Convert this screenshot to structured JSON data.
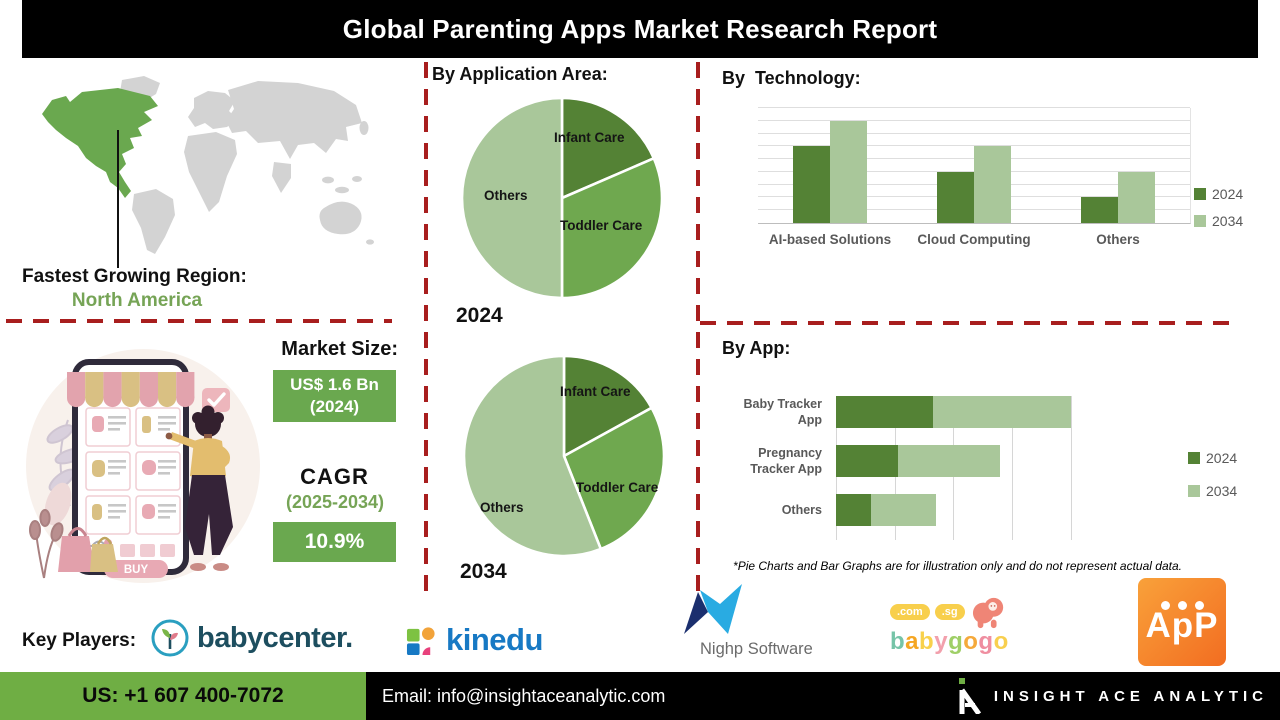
{
  "title": "Global Parenting Apps Market Research Report",
  "colors": {
    "green_dark": "#548235",
    "green_mid": "#6fa84f",
    "green_light": "#a9c79a",
    "accent_red": "#a81e1e",
    "box_green": "#6aa84f",
    "footer_green": "#6fae44",
    "text_green": "#76a456"
  },
  "map_section": {
    "caption": "Fastest Growing Region:",
    "region": "North America"
  },
  "market": {
    "size_label": "Market Size:",
    "size_value": "US$ 1.6 Bn",
    "size_year": "(2024)",
    "cagr_label": "CAGR",
    "cagr_period": "(2025-2034)",
    "cagr_value": "10.9%"
  },
  "sections": {
    "application_area_heading": "By Application Area:",
    "technology_heading": "By  Technology:",
    "app_heading": "By App:"
  },
  "chart_data": [
    {
      "type": "pie",
      "title": "2024",
      "slices": [
        {
          "label": "Infant Care",
          "pct": 18.5,
          "color": "#548235"
        },
        {
          "label": "Toddler Care",
          "pct": 31.5,
          "color": "#6fa84f"
        },
        {
          "label": "Others",
          "pct": 50,
          "color": "#a9c79a"
        }
      ]
    },
    {
      "type": "pie",
      "title": "2034",
      "slices": [
        {
          "label": "Infant Care",
          "pct": 17,
          "color": "#548235"
        },
        {
          "label": "Toddler Care",
          "pct": 27,
          "color": "#6fa84f"
        },
        {
          "label": "Others",
          "pct": 56,
          "color": "#a9c79a"
        }
      ]
    },
    {
      "type": "bar",
      "title": "By Technology",
      "categories": [
        "AI-based Solutions",
        "Cloud Computing",
        "Others"
      ],
      "series": [
        {
          "name": "2024",
          "color": "#548235",
          "values": [
            6,
            4,
            2
          ]
        },
        {
          "name": "2034",
          "color": "#a9c79a",
          "values": [
            8,
            6,
            4
          ]
        }
      ],
      "ylim": [
        0,
        9
      ],
      "grid_step": 1,
      "legend_position": "right"
    },
    {
      "type": "stacked-bar-horizontal",
      "title": "By App",
      "categories": [
        "Baby Tracker App",
        "Pregnancy Tracker App",
        "Others"
      ],
      "series": [
        {
          "name": "2024",
          "color": "#548235",
          "values": [
            1.65,
            1.05,
            0.6
          ]
        },
        {
          "name": "2034",
          "color": "#a9c79a",
          "values": [
            2.35,
            1.75,
            1.1
          ]
        }
      ],
      "xlim": [
        0,
        4.7
      ],
      "grid_step": 1,
      "legend_position": "right"
    }
  ],
  "footnote": "*Pie Charts and Bar Graphs are for illustration only and do not represent actual data.",
  "key_players": {
    "label": "Key Players:",
    "players": [
      "babycenter.",
      "kinedu",
      "Nighp Software",
      "babygogo",
      "ApP"
    ],
    "babygogo_tags": [
      ".com",
      ".sg"
    ]
  },
  "footer": {
    "phone": "US: +1 607 400-7072",
    "email": "Email: info@insightaceanalytic.com",
    "brand": "INSIGHT ACE ANALYTIC"
  }
}
